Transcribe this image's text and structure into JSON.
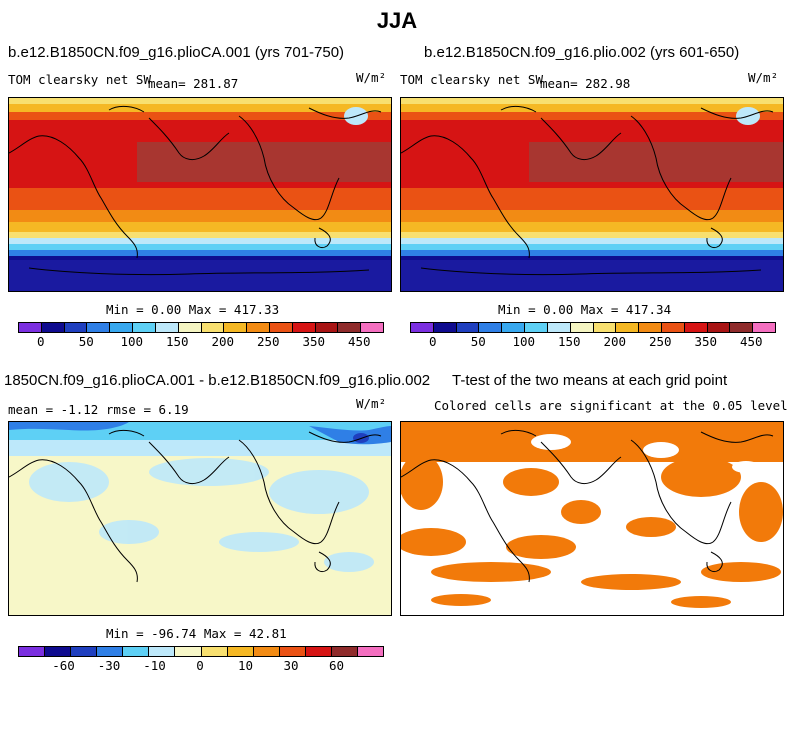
{
  "figure_title": "JJA",
  "panels": {
    "top_left": {
      "case": "b.e12.B1850CN.f09_g16.plioCA.001 (yrs 701-750)",
      "field": "TOM clearsky net SW",
      "mean_text": "mean= 281.87",
      "units": "W/m²",
      "minmax": "Min =   0.00 Max = 417.33",
      "colorbar_ticks": [
        "0",
        "50",
        "100",
        "150",
        "200",
        "250",
        "350",
        "450"
      ]
    },
    "top_right": {
      "case": "b.e12.B1850CN.f09_g16.plio.002 (yrs 601-650)",
      "field": "TOM clearsky net SW",
      "mean_text": "mean= 282.98",
      "units": "W/m²",
      "minmax": "Min =   0.00 Max = 417.34",
      "colorbar_ticks": [
        "0",
        "50",
        "100",
        "150",
        "200",
        "250",
        "350",
        "450"
      ]
    },
    "bottom_left": {
      "case": "1850CN.f09_g16.plioCA.001 - b.e12.B1850CN.f09_g16.plio.002",
      "stats": "mean =  -1.12    rmse =    6.19",
      "units": "W/m²",
      "minmax": "Min = -96.74 Max =  42.81",
      "colorbar_ticks": [
        "-60",
        "-30",
        "-10",
        "0",
        "10",
        "30",
        "60"
      ]
    },
    "bottom_right": {
      "title": "T-test of the two means at each grid point",
      "subtitle": "Colored cells are significant at the 0.05 level"
    }
  },
  "colors": {
    "abs_scale": [
      "#7b2fe0",
      "#0f0b8f",
      "#1f3fbf",
      "#2f7fe6",
      "#38a8ef",
      "#5ed0f5",
      "#bde8fa",
      "#f5f5c2",
      "#f8e070",
      "#f5b824",
      "#f28b14",
      "#ea5214",
      "#d61414",
      "#a81414",
      "#8f2b2b",
      "#f46fc0"
    ],
    "diff_scale": [
      "#7b2fe0",
      "#0f0b8f",
      "#1f3fbf",
      "#2f7fe6",
      "#5ed0f5",
      "#bde8fa",
      "#f7f7c8",
      "#f8e070",
      "#f5b824",
      "#f28b14",
      "#ea5214",
      "#d61414",
      "#8f2b2b",
      "#f46fc0"
    ],
    "significant": "#f27a0a"
  }
}
